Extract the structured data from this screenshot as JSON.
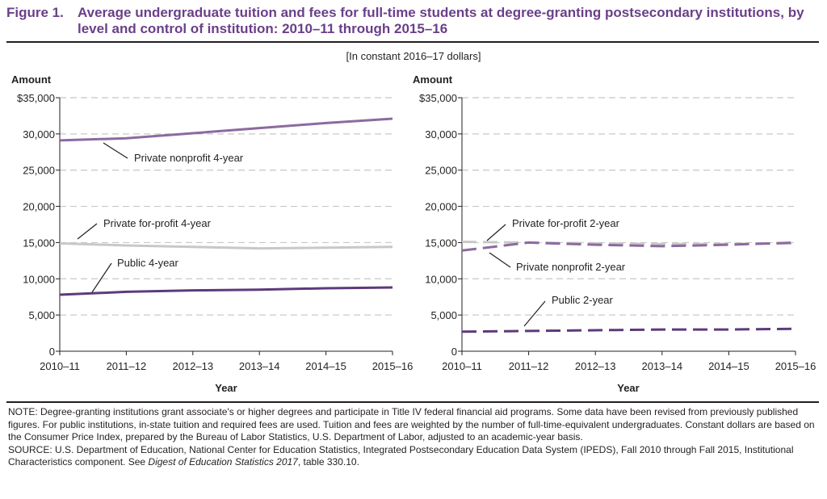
{
  "figure": {
    "number": "Figure 1.",
    "title": "Average undergraduate tuition and fees for full-time students at degree-granting postsecondary institutions, by level and control of institution: 2010–11 through 2015–16",
    "subtitle": "[In constant 2016–17 dollars]"
  },
  "colors": {
    "private_nonprofit": "#8d6a9f",
    "private_forprofit": "#c8c8c8",
    "public": "#5d3a7c",
    "title": "#6a3f8a",
    "grid": "#c8c8c8"
  },
  "chart_data": [
    {
      "type": "line",
      "ylabel": "Amount",
      "xlabel": "Year",
      "x": [
        "2010–11",
        "2011–12",
        "2012–13",
        "2013–14",
        "2014–15",
        "2015–16"
      ],
      "ylim": [
        0,
        35000
      ],
      "yticks": [
        0,
        5000,
        10000,
        15000,
        20000,
        25000,
        30000,
        35000
      ],
      "ytick_labels": [
        "0",
        "5,000",
        "10,000",
        "15,000",
        "20,000",
        "25,000",
        "30,000",
        "$35,000"
      ],
      "grid": true,
      "series": [
        {
          "name": "Private nonprofit 4-year",
          "values": [
            29100,
            29400,
            30100,
            30800,
            31500,
            32100
          ],
          "color": "#8d6a9f",
          "dashed": false
        },
        {
          "name": "Private for-profit 4-year",
          "values": [
            14900,
            14600,
            14400,
            14200,
            14300,
            14400
          ],
          "color": "#c8c8c8",
          "dashed": false
        },
        {
          "name": "Public 4-year",
          "values": [
            7800,
            8200,
            8400,
            8500,
            8700,
            8800
          ],
          "color": "#5d3a7c",
          "dashed": false
        }
      ]
    },
    {
      "type": "line",
      "ylabel": "Amount",
      "xlabel": "Year",
      "x": [
        "2010–11",
        "2011–12",
        "2012–13",
        "2013–14",
        "2014–15",
        "2015–16"
      ],
      "ylim": [
        0,
        35000
      ],
      "yticks": [
        0,
        5000,
        10000,
        15000,
        20000,
        25000,
        30000,
        35000
      ],
      "ytick_labels": [
        "0",
        "5,000",
        "10,000",
        "15,000",
        "20,000",
        "25,000",
        "30,000",
        "$35,000"
      ],
      "grid": true,
      "series": [
        {
          "name": "Private for-profit 2-year",
          "values": [
            15100,
            15000,
            14900,
            14800,
            14800,
            14900
          ],
          "color": "#c8c8c8",
          "dashed": true
        },
        {
          "name": "Private nonprofit 2-year",
          "values": [
            13900,
            15000,
            14700,
            14500,
            14700,
            15000
          ],
          "color": "#8d6a9f",
          "dashed": true
        },
        {
          "name": "Public 2-year",
          "values": [
            2700,
            2800,
            2900,
            3000,
            3000,
            3100
          ],
          "color": "#5d3a7c",
          "dashed": true
        }
      ]
    }
  ],
  "note": {
    "text": "NOTE: Degree-granting institutions grant associate's or higher degrees and participate in Title IV federal financial aid programs. Some data have been revised from previously published figures. For public institutions, in-state tuition and required fees are used. Tuition and fees are weighted by the number of full-time-equivalent undergraduates. Constant dollars are based on the Consumer Price Index, prepared by the Bureau of Labor Statistics, U.S. Department of Labor, adjusted to an academic-year basis.",
    "source_prefix": "SOURCE: U.S. Department of Education, National Center for Education Statistics, Integrated Postsecondary Education Data System (IPEDS), Fall 2010 through Fall 2015, Institutional Characteristics component. See ",
    "source_italic": "Digest of Education Statistics 2017",
    "source_suffix": ", table 330.10."
  }
}
